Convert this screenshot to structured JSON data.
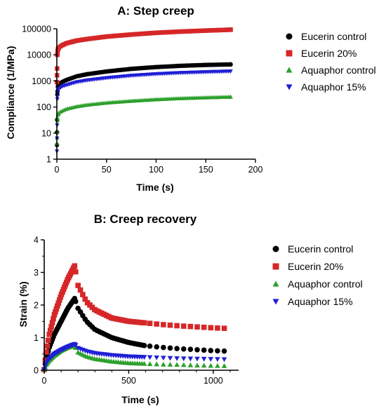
{
  "chart_data": [
    {
      "type": "scatter",
      "title": "A: Step creep",
      "xlabel": "Time (s)",
      "ylabel": "Compliance (1/MPa)",
      "xlim": [
        0,
        200
      ],
      "ylim": [
        1,
        100000
      ],
      "yscale": "log",
      "x_ticks": [
        "0",
        "50",
        "100",
        "150",
        "200"
      ],
      "y_ticks": [
        "1",
        "10",
        "100",
        "1000",
        "10000",
        "100000"
      ],
      "grid": false,
      "legend_position": "right",
      "series": [
        {
          "name": "Eucerin control",
          "marker": "circle",
          "color": "#000000",
          "x": [
            0.1,
            0.5,
            1,
            2,
            5,
            10,
            20,
            30,
            50,
            75,
            100,
            125,
            150,
            175
          ],
          "y": [
            3.5,
            300,
            600,
            750,
            900,
            1100,
            1500,
            1800,
            2300,
            2900,
            3400,
            3800,
            4100,
            4300
          ]
        },
        {
          "name": "Eucerin 20%",
          "marker": "square",
          "color": "#d62728",
          "x": [
            0.1,
            0.5,
            1,
            2,
            5,
            10,
            20,
            30,
            50,
            75,
            100,
            125,
            150,
            175
          ],
          "y": [
            900,
            10000,
            16000,
            19000,
            23000,
            28000,
            35000,
            40000,
            50000,
            60000,
            70000,
            78000,
            85000,
            92000
          ]
        },
        {
          "name": "Aquaphor control",
          "marker": "triangle-up",
          "color": "#2ca02c",
          "x": [
            0.1,
            0.5,
            1,
            2,
            5,
            10,
            20,
            30,
            50,
            75,
            100,
            125,
            150,
            175
          ],
          "y": [
            4,
            30,
            50,
            60,
            70,
            85,
            105,
            120,
            145,
            170,
            195,
            215,
            230,
            245
          ]
        },
        {
          "name": "Aquaphor 15%",
          "marker": "triangle-down",
          "color": "#1f1fd6",
          "x": [
            0.1,
            0.5,
            1,
            2,
            5,
            10,
            20,
            30,
            50,
            75,
            100,
            125,
            150,
            175
          ],
          "y": [
            2,
            200,
            400,
            500,
            600,
            700,
            900,
            1050,
            1300,
            1600,
            1850,
            2050,
            2200,
            2350
          ]
        }
      ]
    },
    {
      "type": "scatter",
      "title": "B: Creep recovery",
      "xlabel": "Time (s)",
      "ylabel": "Strain (%)",
      "xlim": [
        0,
        1150
      ],
      "ylim": [
        0,
        4
      ],
      "x_ticks": [
        "0",
        "500",
        "1000"
      ],
      "y_ticks": [
        "0",
        "1",
        "2",
        "3",
        "4"
      ],
      "grid": false,
      "legend_position": "right",
      "series": [
        {
          "name": "Eucerin control",
          "marker": "circle",
          "color": "#000000",
          "x": [
            0,
            10,
            30,
            60,
            100,
            140,
            180,
            200,
            250,
            300,
            400,
            500,
            600,
            700,
            800,
            900,
            1000,
            1100
          ],
          "y": [
            0.02,
            0.3,
            0.7,
            1.1,
            1.5,
            1.9,
            2.2,
            1.9,
            1.5,
            1.25,
            1.0,
            0.85,
            0.75,
            0.7,
            0.66,
            0.63,
            0.6,
            0.58
          ]
        },
        {
          "name": "Eucerin 20%",
          "marker": "square",
          "color": "#d62728",
          "x": [
            0,
            10,
            30,
            60,
            100,
            140,
            180,
            200,
            250,
            300,
            400,
            500,
            600,
            700,
            800,
            900,
            1000,
            1100
          ],
          "y": [
            0.02,
            0.5,
            1.1,
            1.7,
            2.3,
            2.8,
            3.2,
            2.6,
            2.1,
            1.85,
            1.6,
            1.5,
            1.45,
            1.4,
            1.36,
            1.33,
            1.3,
            1.28
          ]
        },
        {
          "name": "Aquaphor control",
          "marker": "triangle-up",
          "color": "#2ca02c",
          "x": [
            0,
            10,
            30,
            60,
            100,
            140,
            180,
            200,
            250,
            300,
            400,
            500,
            600,
            700,
            800,
            900,
            1000,
            1100
          ],
          "y": [
            0.02,
            0.15,
            0.3,
            0.45,
            0.6,
            0.7,
            0.75,
            0.55,
            0.42,
            0.35,
            0.27,
            0.22,
            0.2,
            0.18,
            0.17,
            0.15,
            0.14,
            0.13
          ]
        },
        {
          "name": "Aquaphor 15%",
          "marker": "triangle-down",
          "color": "#1f1fd6",
          "x": [
            0,
            10,
            30,
            60,
            100,
            140,
            180,
            200,
            250,
            300,
            400,
            500,
            600,
            700,
            800,
            900,
            1000,
            1100
          ],
          "y": [
            0.02,
            0.2,
            0.35,
            0.5,
            0.62,
            0.72,
            0.8,
            0.68,
            0.58,
            0.52,
            0.46,
            0.42,
            0.4,
            0.38,
            0.36,
            0.35,
            0.34,
            0.33
          ]
        }
      ]
    }
  ]
}
